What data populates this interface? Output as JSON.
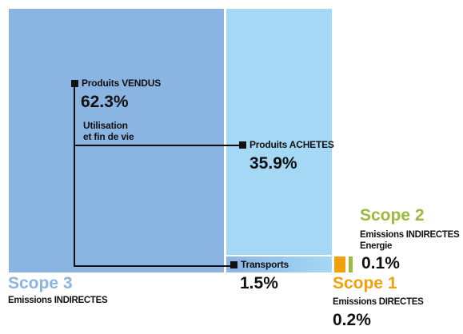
{
  "colors": {
    "scope3": "#8ab4e1",
    "scope3_light": "#a5d8f5",
    "scope2": "#9bbb3c",
    "scope1": "#f0a10b",
    "text": "#111111"
  },
  "scope3": {
    "title": "Scope 3",
    "subtitle": "Emissions INDIRECTES",
    "sold": {
      "label": "Produits VENDUS",
      "value": "62.3%",
      "note": "Utilisation\net fin de vie"
    },
    "bought": {
      "label": "Produits ACHETES",
      "value": "35.9%"
    },
    "transport": {
      "label": "Transports",
      "value": "1.5%"
    }
  },
  "scope2": {
    "title": "Scope 2",
    "subtitle": "Emissions INDIRECTES\nEnergie",
    "value": "0.1%"
  },
  "scope1": {
    "title": "Scope 1",
    "subtitle": "Emissions DIRECTES",
    "value": "0.2%"
  }
}
